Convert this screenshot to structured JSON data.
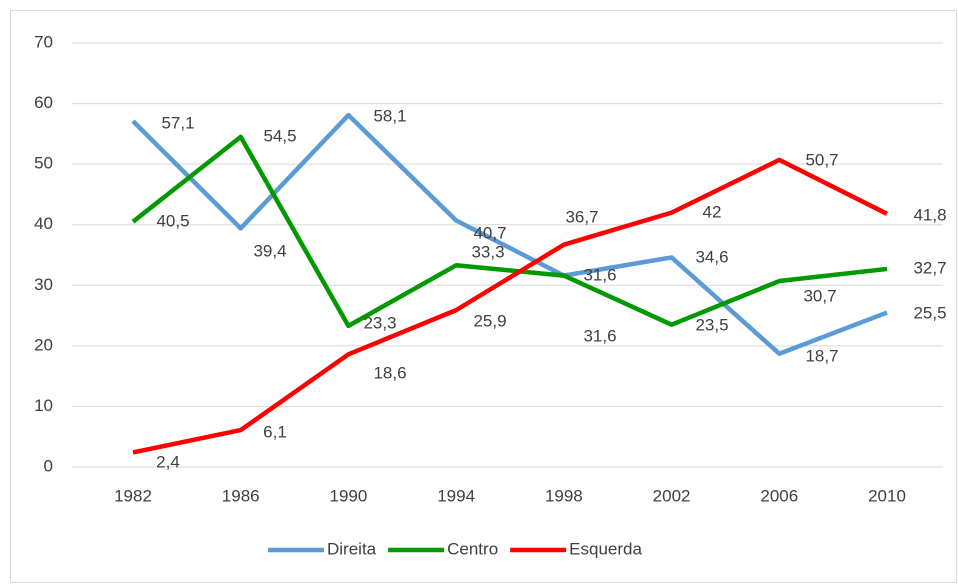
{
  "chart_data": {
    "type": "line",
    "categories": [
      "1982",
      "1986",
      "1990",
      "1994",
      "1998",
      "2002",
      "2006",
      "2010"
    ],
    "series": [
      {
        "name": "Direita",
        "color": "#5b9bd5",
        "values": [
          57.1,
          39.4,
          58.1,
          40.7,
          31.6,
          34.6,
          18.7,
          25.5
        ],
        "value_labels": [
          "57,1",
          "39,4",
          "58,1",
          "40,7",
          "31,6",
          "34,6",
          "18,7",
          "25,5"
        ]
      },
      {
        "name": "Centro",
        "color": "#009900",
        "values": [
          40.5,
          54.5,
          23.3,
          33.3,
          31.6,
          23.5,
          30.7,
          32.7
        ],
        "value_labels": [
          "40,5",
          "54,5",
          "23,3",
          "33,3",
          "31,6",
          "23,5",
          "30,7",
          "32,7"
        ]
      },
      {
        "name": "Esquerda",
        "color": "#ff0000",
        "values": [
          2.4,
          6.1,
          18.6,
          25.9,
          36.7,
          42,
          50.7,
          41.8
        ],
        "value_labels": [
          "2,4",
          "6,1",
          "18,6",
          "25,9",
          "36,7",
          "42",
          "50,7",
          "41,8"
        ]
      }
    ],
    "ylim": [
      0,
      70
    ],
    "yticks": [
      0,
      10,
      20,
      30,
      40,
      50,
      60,
      70
    ],
    "grid": true,
    "legend": "bottom"
  }
}
